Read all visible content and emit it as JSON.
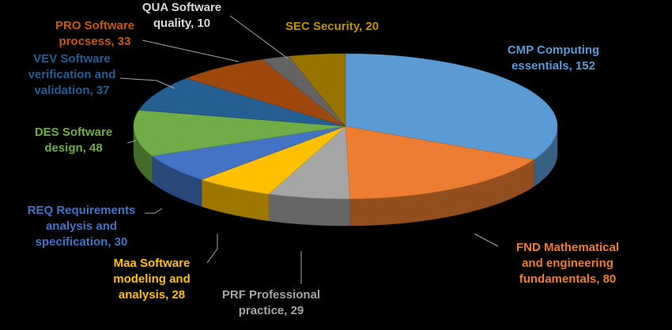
{
  "chart_data": {
    "type": "pie",
    "title": "",
    "categories": [
      "CMP Computing essentials",
      "FND Mathematical and engineering fundamentals",
      "PRF Professional practice",
      "Maa Software modeling and analysis",
      "REQ Requirements analysis and specification",
      "DES Software design",
      "VEV Software verification and validation",
      "PRO Software procsess",
      "QUA Software quality",
      "SEC Security"
    ],
    "values": [
      152,
      80,
      29,
      28,
      30,
      48,
      37,
      33,
      10,
      20
    ],
    "labels": [
      [
        "CMP   Computing",
        "essentials, 152"
      ],
      [
        "FND Mathematical",
        "and engineering",
        "fundamentals, 80"
      ],
      [
        "PRF Professional",
        "practice, 29"
      ],
      [
        "Maa Software",
        "modeling and",
        "analysis, 28"
      ],
      [
        "REQ Requirements",
        "analysis and",
        "specification, 30"
      ],
      [
        "DES Software",
        "design, 48"
      ],
      [
        "VEV  Software",
        "verification and",
        "validation, 37"
      ],
      [
        "PRO Software",
        "procsess, 33"
      ],
      [
        "QUA Software",
        "quality, 10"
      ],
      [
        "SEC Security, 20"
      ]
    ],
    "colors": [
      "#5B9BD5",
      "#ED7D31",
      "#A5A5A5",
      "#FFC000",
      "#4472C4",
      "#70AD47",
      "#255E91",
      "#9E480E",
      "#636363",
      "#997300"
    ],
    "label_colors": [
      "#5B9BD5",
      "#ED7D31",
      "#A5A5A5",
      "#FFC000",
      "#4472C4",
      "#70AD47",
      "#255E91",
      "#C55A11",
      "#D9D9D9",
      "#BF9000"
    ],
    "background": "#000000",
    "style": "3d-pie",
    "legend": "none"
  }
}
